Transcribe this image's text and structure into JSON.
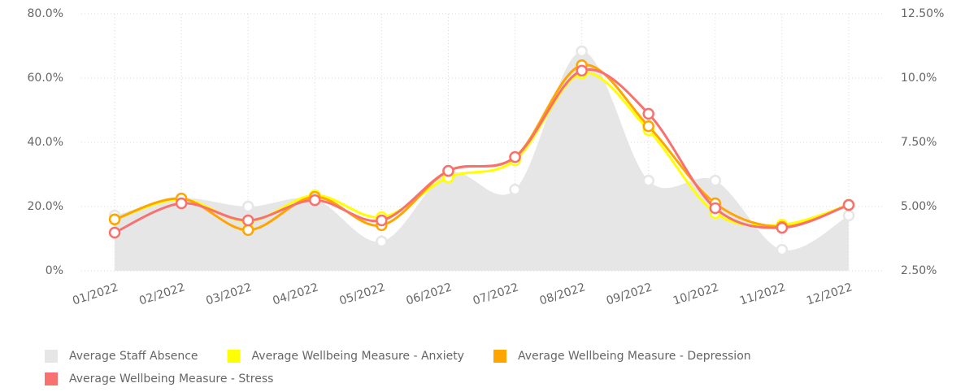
{
  "chart_data": {
    "type": "line",
    "categories": [
      "01/2022",
      "02/2022",
      "03/2022",
      "04/2022",
      "05/2022",
      "06/2022",
      "07/2022",
      "08/2022",
      "09/2022",
      "10/2022",
      "11/2022",
      "12/2022"
    ],
    "series": [
      {
        "name": "Average Staff Absence",
        "color": "#e6e6e6",
        "kind": "area",
        "axis": "y2",
        "values": [
          4.65,
          5.32,
          5.0,
          5.28,
          3.64,
          6.3,
          5.66,
          11.04,
          6.01,
          6.01,
          3.32,
          4.65
        ]
      },
      {
        "name": "Average Wellbeing Measure - Anxiety",
        "color": "#ffff00",
        "values": [
          16,
          22.3,
          15.4,
          23.5,
          16.7,
          29.1,
          34.4,
          61.5,
          43.8,
          18,
          14.4,
          20.5
        ]
      },
      {
        "name": "Average Wellbeing Measure - Depression",
        "color": "#ffa500",
        "values": [
          16,
          22.5,
          12.7,
          23,
          14.2,
          31.1,
          35.4,
          64,
          45,
          21,
          13.7,
          20.5
        ]
      },
      {
        "name": "Average Wellbeing Measure - Stress",
        "color": "#f87171",
        "values": [
          11.9,
          21,
          15.7,
          22,
          15.7,
          31.1,
          35.4,
          62.3,
          48.9,
          19.5,
          13.4,
          20.5
        ]
      }
    ],
    "ylim": [
      0,
      80
    ],
    "yticks": [
      {
        "value": 0,
        "label": "0%"
      },
      {
        "value": 20,
        "label": "20.0%"
      },
      {
        "value": 40,
        "label": "40.0%"
      },
      {
        "value": 60,
        "label": "60.0%"
      },
      {
        "value": 80,
        "label": "80.0%"
      }
    ],
    "y2lim": [
      2.5,
      12.5
    ],
    "y2ticks": [
      {
        "value": 2.5,
        "label": "2.50%"
      },
      {
        "value": 5,
        "label": "5.00%"
      },
      {
        "value": 7.5,
        "label": "7.50%"
      },
      {
        "value": 10,
        "label": "10.0%"
      },
      {
        "value": 12.5,
        "label": "12.50%"
      }
    ],
    "grid": true,
    "legend": "bottom"
  }
}
